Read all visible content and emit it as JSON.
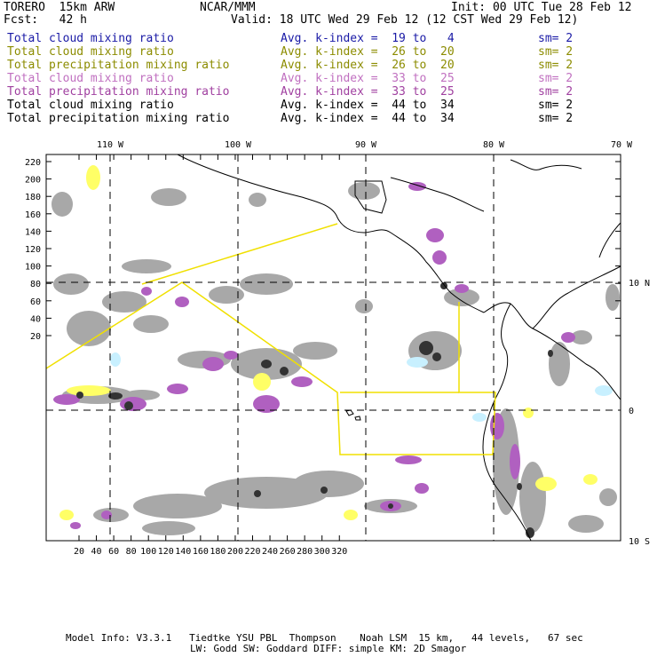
{
  "header": {
    "model": "TORERO  15km ARW",
    "org": "NCAR/MMM",
    "init": "Init: 00 UTC Tue 28 Feb 12",
    "fcst": "Fcst:   42 h",
    "valid": "Valid: 18 UTC Wed 29 Feb 12 (12 CST Wed 29 Feb 12)"
  },
  "legend": [
    {
      "label": "Total cloud mixing ratio",
      "kindex": "Avg. k-index =  19 to   4",
      "sm": "sm= 2",
      "color": "#1a1aa6"
    },
    {
      "label": "Total cloud mixing ratio",
      "kindex": "Avg. k-index =  26 to  20",
      "sm": "sm= 2",
      "color": "#8c8c00"
    },
    {
      "label": "Total precipitation mixing ratio",
      "kindex": "Avg. k-index =  26 to  20",
      "sm": "sm= 2",
      "color": "#8c8c00"
    },
    {
      "label": "Total cloud mixing ratio",
      "kindex": "Avg. k-index =  33 to  25",
      "sm": "sm= 2",
      "color": "#c070c0"
    },
    {
      "label": "Total precipitation mixing ratio",
      "kindex": "Avg. k-index =  33 to  25",
      "sm": "sm= 2",
      "color": "#a040a0"
    },
    {
      "label": "Total cloud mixing ratio",
      "kindex": "Avg. k-index =  44 to  34",
      "sm": "sm= 2",
      "color": "#000000"
    },
    {
      "label": "Total precipitation mixing ratio",
      "kindex": "Avg. k-index =  44 to  34",
      "sm": "sm= 2",
      "color": "#000000"
    }
  ],
  "axes": {
    "top_lon": [
      "110 W",
      "100 W",
      "90 W",
      "80 W",
      "70 W"
    ],
    "right_lat": [
      "10 N",
      "0",
      "10 S"
    ],
    "left_y": [
      "220",
      "200",
      "180",
      "160",
      "140",
      "120",
      "100",
      "80",
      "60",
      "40",
      "20"
    ],
    "bottom_x": [
      "20",
      "40",
      "60",
      "80",
      "100",
      "120",
      "140",
      "160",
      "180",
      "200",
      "220",
      "240",
      "260",
      "280",
      "300",
      "320"
    ]
  },
  "colors": {
    "cloud_gray": "#a8a8a8",
    "dark_gray": "#555555",
    "purple": "#b060c0",
    "yellow": "#ffff66",
    "cyan": "#c8f0ff",
    "domain_line": "#f0e000"
  },
  "footer": {
    "line1": "Model Info: V3.3.1   Tiedtke YSU PBL  Thompson    Noah LSM  15 km,   44 levels,   67 sec",
    "line2": "LW: Godd SW: Goddard DIFF: simple KM: 2D Smagor"
  }
}
